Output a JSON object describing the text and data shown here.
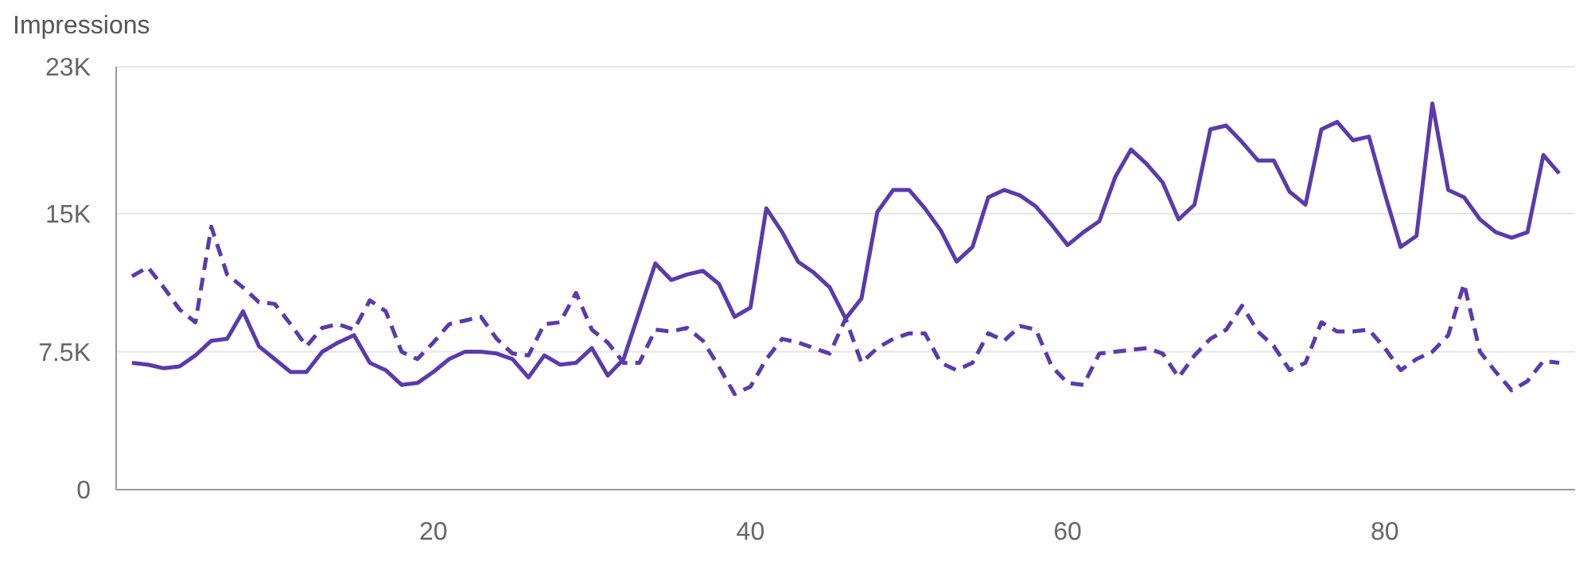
{
  "chart_data": {
    "type": "line",
    "ylabel": "Impressions",
    "x": [
      1,
      2,
      3,
      4,
      5,
      6,
      7,
      8,
      9,
      10,
      11,
      12,
      13,
      14,
      15,
      16,
      17,
      18,
      19,
      20,
      21,
      22,
      23,
      24,
      25,
      26,
      27,
      28,
      29,
      30,
      31,
      32,
      33,
      34,
      35,
      36,
      37,
      38,
      39,
      40,
      41,
      42,
      43,
      44,
      45,
      46,
      47,
      48,
      49,
      50,
      51,
      52,
      53,
      54,
      55,
      56,
      57,
      58,
      59,
      60,
      61,
      62,
      63,
      64,
      65,
      66,
      67,
      68,
      69,
      70,
      71,
      72,
      73,
      74,
      75,
      76,
      77,
      78,
      79,
      80,
      81,
      82,
      83,
      84,
      85,
      86,
      87,
      88,
      89,
      90,
      91
    ],
    "series": [
      {
        "color": "#5b3aad",
        "line_style": "solid",
        "values": [
          6900,
          6800,
          6600,
          6700,
          7300,
          8100,
          8200,
          9700,
          7800,
          7100,
          6400,
          6400,
          7500,
          8000,
          8400,
          6900,
          6500,
          5700,
          5800,
          6400,
          7100,
          7500,
          7500,
          7400,
          7100,
          6100,
          7300,
          6800,
          6900,
          7700,
          6200,
          7100,
          9700,
          12300,
          11400,
          11700,
          11900,
          11200,
          9400,
          9900,
          15300,
          14000,
          12400,
          11800,
          11000,
          9300,
          10400,
          15100,
          16300,
          16300,
          15300,
          14100,
          12400,
          13200,
          15900,
          16300,
          16000,
          15400,
          14400,
          13300,
          14000,
          14600,
          17000,
          18500,
          17700,
          16700,
          14700,
          15500,
          19600,
          19800,
          18900,
          17900,
          17900,
          16200,
          15500,
          19600,
          20000,
          19000,
          19200,
          16100,
          13200,
          13800,
          21000,
          16300,
          15900,
          14700,
          14000,
          13700,
          14000,
          18200,
          17200
        ]
      },
      {
        "color": "#5b3aad",
        "line_style": "dashed",
        "values": [
          11600,
          12100,
          11000,
          9800,
          9100,
          14300,
          11700,
          11000,
          10200,
          10100,
          9000,
          7800,
          8800,
          9000,
          8700,
          10300,
          9700,
          7500,
          7100,
          8000,
          9000,
          9200,
          9400,
          8200,
          7400,
          7300,
          9000,
          9100,
          10700,
          8700,
          8000,
          6900,
          6900,
          8700,
          8600,
          8800,
          8100,
          6700,
          5200,
          5600,
          7100,
          8200,
          8000,
          7700,
          7400,
          9300,
          6900,
          7700,
          8200,
          8500,
          8500,
          6900,
          6500,
          6900,
          8500,
          8100,
          8900,
          8700,
          6700,
          5800,
          5700,
          7400,
          7500,
          7600,
          7700,
          7400,
          6100,
          7300,
          8200,
          8700,
          10000,
          8600,
          7800,
          6500,
          6900,
          9100,
          8600,
          8600,
          8700,
          7700,
          6500,
          7100,
          7500,
          8400,
          11200,
          7500,
          6400,
          5400,
          5900,
          7000,
          6900
        ]
      }
    ],
    "xlim": [
      0,
      92
    ],
    "xticks": [
      20,
      40,
      60,
      80
    ],
    "ylim": [
      0,
      23000
    ],
    "yticks": [
      0,
      {
        "value": 7500,
        "label": "7.5K"
      },
      {
        "value": 15000,
        "label": "15K"
      },
      {
        "value": 23000,
        "label": "23K"
      }
    ],
    "grid": "y"
  }
}
